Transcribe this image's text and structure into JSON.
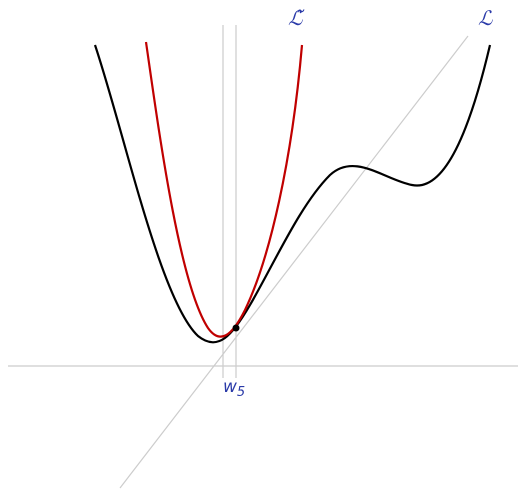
{
  "labels": {
    "surrogate": "ℒ̃",
    "loss": "ℒ",
    "point": "w",
    "point_subscript": "5"
  },
  "colors": {
    "loss_curve": "#000000",
    "surrogate_curve": "#c00000",
    "guide_lines": "#cccccc",
    "labels": "#2a3aa8",
    "point": "#000000"
  }
}
